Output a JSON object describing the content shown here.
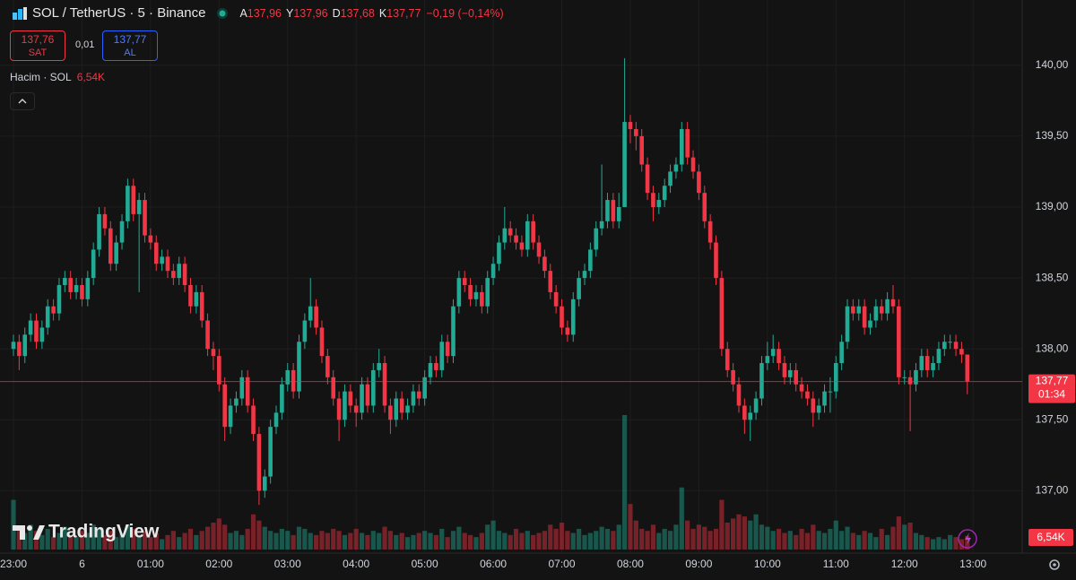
{
  "header": {
    "symbol": "SOL / TetherUS · 5 · Binance",
    "ohlc": [
      {
        "key": "A",
        "value": "137,96"
      },
      {
        "key": "Y",
        "value": "137,96"
      },
      {
        "key": "D",
        "value": "137,68"
      },
      {
        "key": "K",
        "value": "137,77"
      }
    ],
    "change": "−0,19 (−0,14%)",
    "sell": {
      "price": "137,76",
      "label": "SAT"
    },
    "spread": "0,01",
    "buy": {
      "price": "137,77",
      "label": "AL"
    },
    "volume_legend": {
      "name": "Hacim · SOL",
      "value": "6,54K"
    },
    "brand": "TradingView"
  },
  "chart_data": {
    "type": "candlestick",
    "up_color": "#22ab94",
    "down_color": "#f23645",
    "grid": true,
    "ylim": [
      136.56,
      140.46
    ],
    "yticks": [
      {
        "value": 137,
        "label": "137,00"
      },
      {
        "value": 137.5,
        "label": "137,50"
      },
      {
        "value": 138,
        "label": "138,00"
      },
      {
        "value": 138.5,
        "label": "138,50"
      },
      {
        "value": 139,
        "label": "139,00"
      },
      {
        "value": 139.5,
        "label": "139,50"
      },
      {
        "value": 140,
        "label": "140,00"
      }
    ],
    "xticks": [
      "23:00",
      "6",
      "01:00",
      "02:00",
      "03:00",
      "04:00",
      "05:00",
      "06:00",
      "07:00",
      "08:00",
      "09:00",
      "10:00",
      "11:00",
      "12:00",
      "13:00"
    ],
    "last_price_label": "137,77",
    "countdown": "01:34",
    "volume_label": "6,54K",
    "open": [
      138.0,
      138.05,
      137.95,
      138.1,
      138.2,
      138.05,
      138.15,
      138.3,
      138.25,
      138.45,
      138.5,
      138.4,
      138.45,
      138.35,
      138.5,
      138.7,
      138.95,
      138.85,
      138.6,
      138.75,
      138.9,
      139.15,
      138.95,
      139.05,
      138.8,
      138.75,
      138.6,
      138.65,
      138.55,
      138.5,
      138.6,
      138.45,
      138.3,
      138.4,
      138.2,
      138.0,
      137.95,
      137.75,
      137.45,
      137.6,
      137.65,
      137.8,
      137.6,
      137.4,
      137.0,
      137.1,
      137.45,
      137.55,
      137.75,
      137.85,
      137.7,
      138.05,
      138.2,
      138.3,
      138.15,
      137.95,
      137.8,
      137.65,
      137.5,
      137.7,
      137.6,
      137.55,
      137.75,
      137.6,
      137.85,
      137.9,
      137.6,
      137.5,
      137.65,
      137.55,
      137.6,
      137.7,
      137.65,
      137.8,
      137.9,
      137.85,
      138.05,
      137.95,
      138.3,
      138.5,
      138.45,
      138.35,
      138.4,
      138.3,
      138.5,
      138.6,
      138.75,
      138.85,
      138.8,
      138.75,
      138.7,
      138.9,
      138.75,
      138.65,
      138.55,
      138.4,
      138.3,
      138.15,
      138.1,
      138.35,
      138.5,
      138.55,
      138.7,
      138.85,
      138.9,
      139.05,
      138.9,
      139.0,
      139.6,
      139.55,
      139.5,
      139.3,
      139.1,
      139.0,
      139.05,
      139.15,
      139.25,
      139.3,
      139.55,
      139.35,
      139.25,
      139.1,
      138.9,
      138.75,
      138.5,
      138.0,
      137.85,
      137.75,
      137.6,
      137.5,
      137.55,
      137.65,
      137.9,
      137.95,
      138.0,
      137.9,
      137.8,
      137.85,
      137.75,
      137.7,
      137.65,
      137.55,
      137.6,
      137.7,
      137.7,
      137.9,
      138.05,
      138.3,
      138.25,
      138.3,
      138.15,
      138.2,
      138.3,
      138.25,
      138.35,
      138.3,
      137.8,
      137.8,
      137.75,
      137.85,
      137.95,
      137.85,
      137.9,
      138.0,
      138.05,
      138.05,
      138.0,
      137.96
    ],
    "high": [
      138.1,
      138.1,
      138.15,
      138.25,
      138.25,
      138.2,
      138.35,
      138.35,
      138.5,
      138.55,
      138.55,
      138.5,
      138.5,
      138.55,
      138.75,
      139.0,
      139.0,
      138.9,
      138.8,
      138.95,
      139.2,
      139.2,
      139.1,
      139.1,
      138.85,
      138.8,
      138.7,
      138.7,
      138.6,
      138.65,
      138.65,
      138.5,
      138.45,
      138.45,
      138.25,
      138.05,
      138.0,
      137.8,
      137.65,
      137.7,
      137.85,
      137.85,
      137.65,
      137.45,
      137.15,
      137.5,
      137.6,
      137.8,
      137.9,
      137.9,
      138.1,
      138.25,
      138.5,
      138.35,
      138.2,
      138.0,
      137.85,
      137.7,
      137.75,
      137.75,
      137.65,
      137.8,
      137.8,
      137.9,
      138.0,
      137.95,
      137.65,
      137.7,
      137.7,
      137.65,
      137.75,
      137.75,
      137.85,
      137.95,
      137.95,
      138.1,
      138.1,
      138.35,
      138.55,
      138.55,
      138.5,
      138.45,
      138.45,
      138.55,
      138.65,
      138.8,
      139.0,
      138.9,
      138.85,
      138.8,
      138.95,
      138.95,
      138.8,
      138.7,
      138.6,
      138.45,
      138.35,
      138.2,
      138.4,
      138.55,
      138.6,
      138.75,
      138.9,
      139.3,
      139.1,
      139.1,
      139.1,
      140.05,
      139.65,
      139.6,
      139.55,
      139.35,
      139.15,
      139.1,
      139.2,
      139.3,
      139.35,
      139.6,
      139.6,
      139.4,
      139.3,
      139.15,
      138.95,
      138.8,
      138.55,
      138.05,
      137.9,
      137.8,
      137.65,
      137.6,
      137.7,
      137.95,
      138.05,
      138.1,
      138.05,
      137.95,
      137.9,
      137.9,
      137.8,
      137.75,
      137.7,
      137.65,
      137.75,
      137.8,
      137.95,
      138.1,
      138.35,
      138.35,
      138.35,
      138.35,
      138.25,
      138.35,
      138.35,
      138.4,
      138.45,
      138.35,
      137.85,
      137.85,
      137.9,
      138.0,
      138.0,
      137.95,
      138.05,
      138.1,
      138.1,
      138.1,
      138.05,
      137.96
    ],
    "low": [
      137.95,
      137.85,
      137.9,
      138.05,
      138.0,
      138.0,
      138.1,
      138.2,
      138.2,
      138.4,
      138.35,
      138.35,
      138.3,
      138.3,
      138.45,
      138.65,
      138.8,
      138.55,
      138.55,
      138.7,
      138.85,
      138.9,
      138.4,
      138.75,
      138.7,
      138.55,
      138.55,
      138.5,
      138.45,
      138.45,
      138.4,
      138.25,
      138.25,
      138.15,
      137.95,
      137.85,
      137.7,
      137.35,
      137.4,
      137.55,
      137.6,
      137.55,
      137.35,
      136.9,
      136.95,
      137.05,
      137.4,
      137.5,
      137.7,
      137.65,
      137.65,
      138.0,
      138.15,
      138.1,
      137.9,
      137.75,
      137.6,
      137.35,
      137.45,
      137.55,
      137.45,
      137.5,
      137.55,
      137.55,
      137.8,
      137.55,
      137.4,
      137.45,
      137.5,
      137.5,
      137.55,
      137.6,
      137.6,
      137.75,
      137.8,
      137.8,
      137.9,
      137.9,
      138.25,
      138.4,
      138.3,
      138.3,
      138.25,
      138.25,
      138.45,
      138.55,
      138.7,
      138.75,
      138.7,
      138.65,
      138.65,
      138.7,
      138.6,
      138.5,
      138.35,
      138.25,
      138.1,
      138.05,
      138.05,
      138.3,
      138.45,
      138.5,
      138.65,
      138.8,
      138.85,
      138.85,
      138.85,
      139.0,
      139.45,
      139.4,
      139.25,
      139.05,
      138.9,
      138.95,
      139.0,
      139.1,
      139.2,
      139.25,
      139.3,
      139.2,
      139.05,
      138.85,
      138.7,
      138.45,
      137.95,
      137.8,
      137.7,
      137.55,
      137.4,
      137.35,
      137.5,
      137.6,
      137.85,
      137.9,
      137.85,
      137.75,
      137.75,
      137.7,
      137.65,
      137.6,
      137.45,
      137.5,
      137.55,
      137.55,
      137.65,
      137.85,
      138.0,
      138.2,
      138.2,
      138.1,
      138.1,
      138.15,
      138.2,
      138.2,
      138.25,
      137.75,
      137.75,
      137.42,
      137.7,
      137.8,
      137.8,
      137.8,
      137.85,
      137.95,
      138.0,
      137.95,
      137.9,
      137.68
    ],
    "close": [
      138.05,
      137.95,
      138.1,
      138.2,
      138.05,
      138.15,
      138.3,
      138.25,
      138.45,
      138.5,
      138.4,
      138.45,
      138.35,
      138.5,
      138.7,
      138.95,
      138.85,
      138.6,
      138.75,
      138.9,
      139.15,
      138.95,
      139.05,
      138.8,
      138.75,
      138.6,
      138.65,
      138.55,
      138.5,
      138.6,
      138.45,
      138.3,
      138.4,
      138.2,
      138.0,
      137.95,
      137.75,
      137.45,
      137.6,
      137.65,
      137.8,
      137.6,
      137.4,
      137.0,
      137.1,
      137.45,
      137.55,
      137.75,
      137.85,
      137.7,
      138.05,
      138.2,
      138.3,
      138.15,
      137.95,
      137.8,
      137.65,
      137.5,
      137.7,
      137.6,
      137.55,
      137.75,
      137.6,
      137.85,
      137.9,
      137.6,
      137.5,
      137.65,
      137.55,
      137.6,
      137.7,
      137.65,
      137.8,
      137.9,
      137.85,
      138.05,
      137.95,
      138.3,
      138.5,
      138.45,
      138.35,
      138.4,
      138.3,
      138.5,
      138.6,
      138.75,
      138.85,
      138.8,
      138.75,
      138.7,
      138.9,
      138.75,
      138.65,
      138.55,
      138.4,
      138.3,
      138.15,
      138.1,
      138.35,
      138.5,
      138.55,
      138.7,
      138.85,
      138.9,
      139.05,
      138.9,
      139.0,
      139.6,
      139.55,
      139.5,
      139.3,
      139.1,
      139.0,
      139.05,
      139.15,
      139.25,
      139.3,
      139.55,
      139.35,
      139.25,
      139.1,
      138.9,
      138.75,
      138.5,
      138.0,
      137.85,
      137.75,
      137.6,
      137.5,
      137.55,
      137.65,
      137.9,
      137.95,
      138.0,
      137.9,
      137.8,
      137.85,
      137.75,
      137.7,
      137.65,
      137.55,
      137.6,
      137.7,
      137.7,
      137.9,
      138.05,
      138.3,
      138.25,
      138.3,
      138.15,
      138.2,
      138.3,
      138.25,
      138.35,
      138.3,
      137.8,
      137.8,
      137.75,
      137.85,
      137.95,
      137.85,
      137.9,
      138.0,
      138.05,
      138.05,
      138.0,
      137.96,
      137.77
    ],
    "volume": [
      24,
      10,
      8,
      12,
      9,
      7,
      10,
      6,
      8,
      11,
      7,
      6,
      9,
      8,
      12,
      10,
      7,
      9,
      6,
      8,
      12,
      10,
      7,
      9,
      6,
      8,
      5,
      7,
      9,
      6,
      8,
      10,
      7,
      9,
      11,
      13,
      15,
      12,
      8,
      9,
      7,
      10,
      17,
      14,
      11,
      9,
      8,
      10,
      9,
      7,
      11,
      10,
      8,
      7,
      9,
      8,
      10,
      9,
      7,
      8,
      10,
      8,
      7,
      9,
      8,
      11,
      9,
      7,
      8,
      6,
      7,
      8,
      9,
      8,
      7,
      10,
      6,
      9,
      11,
      8,
      7,
      6,
      8,
      12,
      14,
      9,
      8,
      7,
      10,
      8,
      9,
      7,
      8,
      9,
      12,
      10,
      13,
      9,
      8,
      10,
      7,
      8,
      9,
      11,
      10,
      9,
      12,
      65,
      22,
      14,
      10,
      9,
      12,
      8,
      10,
      9,
      12,
      30,
      14,
      10,
      12,
      11,
      9,
      10,
      24,
      13,
      15,
      17,
      16,
      14,
      17,
      12,
      11,
      9,
      10,
      8,
      9,
      7,
      10,
      8,
      12,
      9,
      8,
      10,
      14,
      9,
      11,
      8,
      7,
      9,
      8,
      6,
      10,
      7,
      11,
      16,
      12,
      13,
      8,
      7,
      6,
      5,
      6,
      5,
      7,
      6,
      5,
      6.54
    ]
  }
}
